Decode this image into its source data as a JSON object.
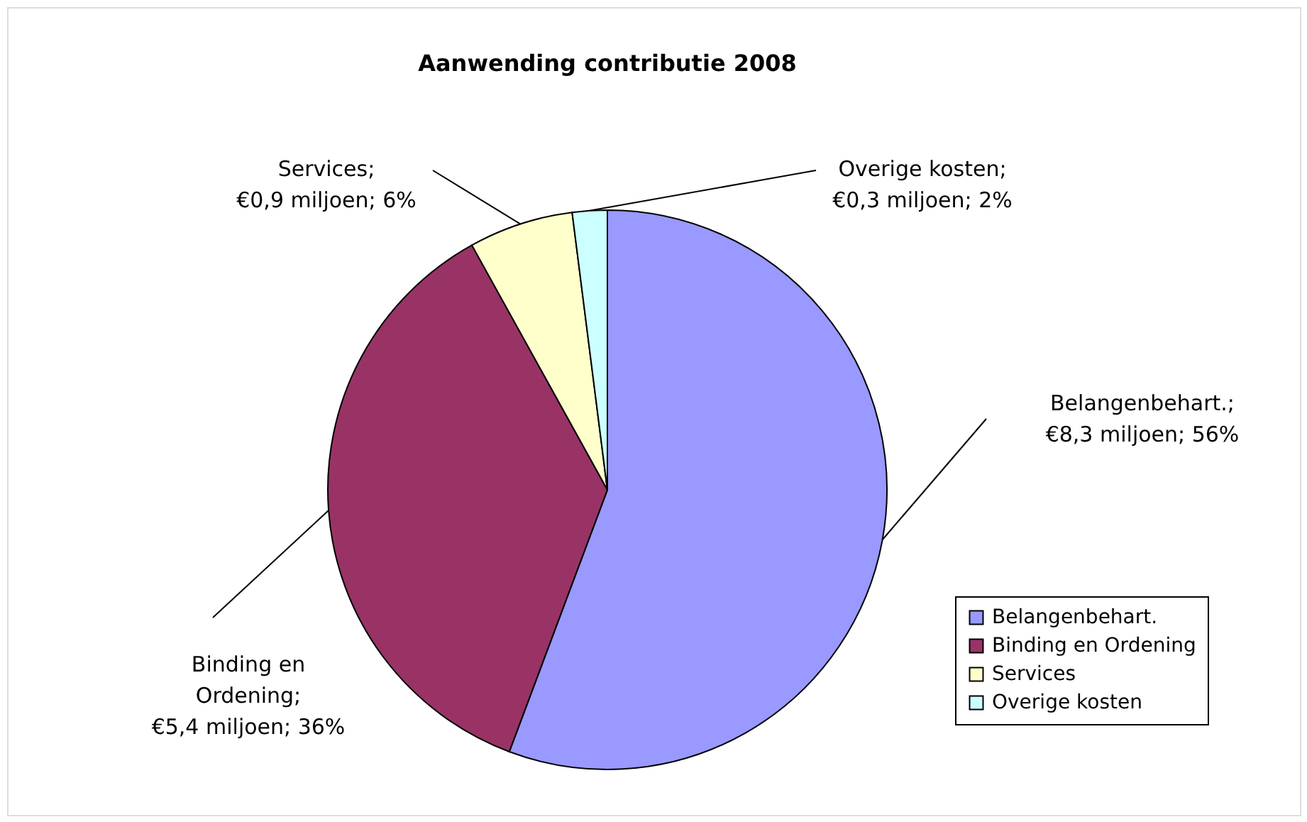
{
  "chart_data": {
    "type": "pie",
    "title": "Aanwending contributie 2008",
    "categories": [
      "Belangenbehart.",
      "Binding en Ordening",
      "Services",
      "Overige kosten"
    ],
    "values": [
      8.3,
      5.4,
      0.9,
      0.3
    ],
    "colors": [
      "#9999ff",
      "#993366",
      "#ffffcc",
      "#ccffff"
    ],
    "value_labels": [
      "Belangenbehart.;\n€8,3 miljoen; 56%",
      "Binding en\nOrdening;\n€5,4 miljoen; 36%",
      "Services;\n€0,9 miljoen; 6%",
      "Overige kosten;\n€0,3 miljoen; 2%"
    ],
    "legend": "bottom right"
  }
}
